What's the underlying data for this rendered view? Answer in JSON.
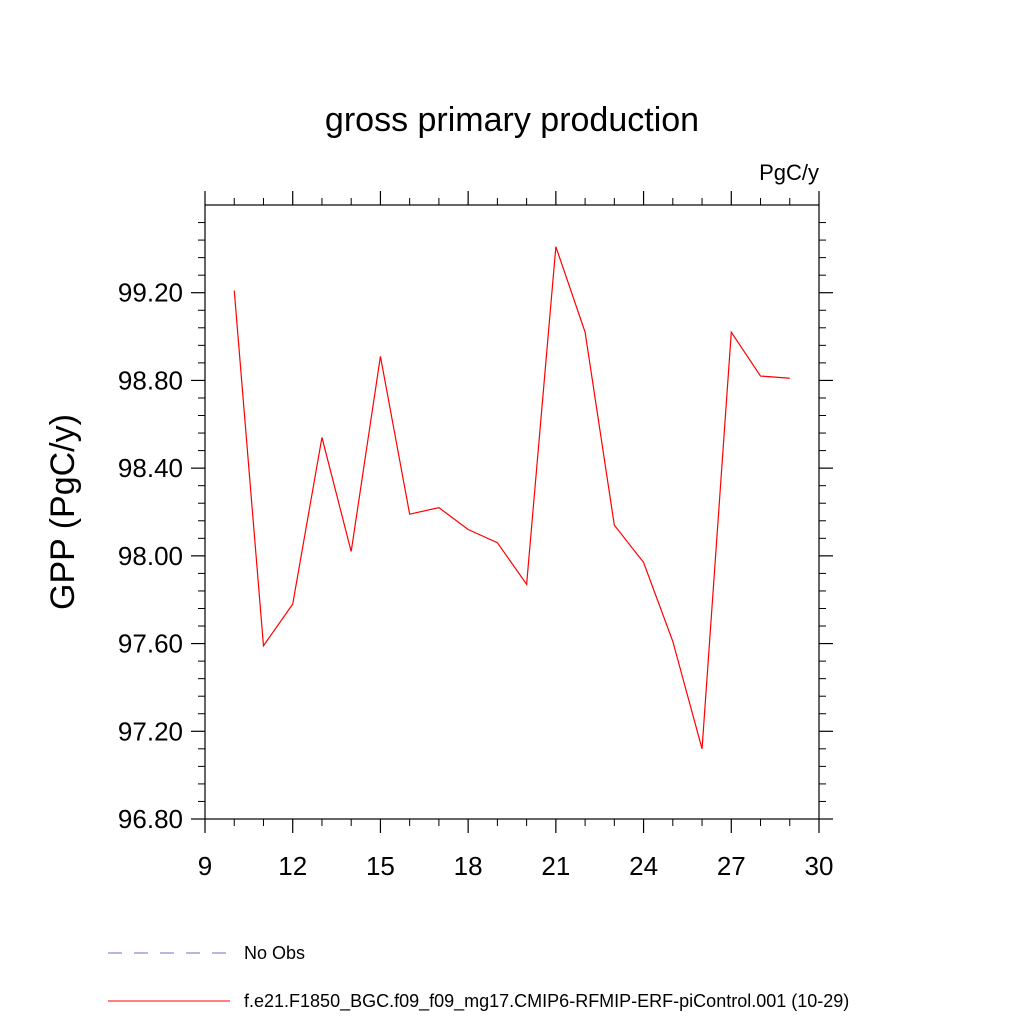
{
  "chart_data": {
    "type": "line",
    "title": "gross primary production",
    "units": "PgC/y",
    "ylabel": "GPP  (PgC/y)",
    "xlabel": "",
    "xlim": [
      9,
      30
    ],
    "ylim": [
      96.8,
      99.6
    ],
    "x_ticks": [
      "9",
      "12",
      "15",
      "18",
      "21",
      "24",
      "27",
      "30"
    ],
    "y_ticks": [
      "96.80",
      "97.20",
      "97.60",
      "98.00",
      "98.40",
      "98.80",
      "99.20"
    ],
    "grid": false,
    "legend_position": "bottom-left",
    "series": [
      {
        "name": "f.e21.F1850_BGC.f09_f09_mg17.CMIP6-RFMIP-ERF-piControl.001 (10-29)",
        "color": "#ff0000",
        "style": "solid",
        "x": [
          10,
          11,
          12,
          13,
          14,
          15,
          16,
          17,
          18,
          19,
          20,
          21,
          22,
          23,
          24,
          25,
          26,
          27,
          28,
          29
        ],
        "values": [
          99.21,
          97.59,
          97.78,
          98.54,
          98.02,
          98.91,
          98.19,
          98.22,
          98.12,
          98.06,
          97.87,
          99.41,
          99.02,
          98.14,
          97.97,
          97.61,
          97.12,
          99.02,
          98.82,
          98.81
        ]
      }
    ],
    "legend": [
      {
        "label": "No Obs",
        "color": "#7b68c8",
        "style": "dashed"
      },
      {
        "label": "f.e21.F1850_BGC.f09_f09_mg17.CMIP6-RFMIP-ERF-piControl.001 (10-29)",
        "color": "#ff0000",
        "style": "solid"
      }
    ]
  }
}
